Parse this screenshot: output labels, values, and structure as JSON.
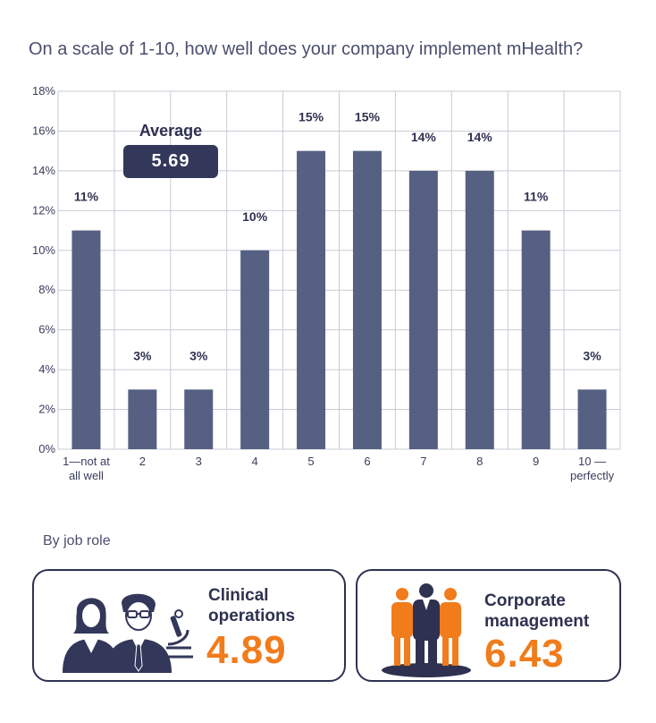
{
  "title": "On a scale of 1-10, how well does your company implement mHealth?",
  "average": {
    "label": "Average",
    "value": "5.69"
  },
  "by_role_label": "By job role",
  "roles": [
    {
      "line1": "Clinical",
      "line2": "operations",
      "value": "4.89"
    },
    {
      "line1": "Corporate",
      "line2": "management",
      "value": "6.43"
    }
  ],
  "colors": {
    "bar": "#566082",
    "accent": "#f07c1c",
    "dark": "#2e3150"
  },
  "chart_data": {
    "type": "bar",
    "title": "On a scale of 1-10, how well does your company implement mHealth?",
    "categories": [
      [
        "1—not at",
        "all well"
      ],
      [
        "2"
      ],
      [
        "3"
      ],
      [
        "4"
      ],
      [
        "5"
      ],
      [
        "6"
      ],
      [
        "7"
      ],
      [
        "8"
      ],
      [
        "9"
      ],
      [
        "10 —",
        "perfectly"
      ]
    ],
    "values": [
      11,
      3,
      3,
      10,
      15,
      15,
      14,
      14,
      11,
      3
    ],
    "data_labels": [
      "11%",
      "3%",
      "3%",
      "10%",
      "15%",
      "15%",
      "14%",
      "14%",
      "11%",
      "3%"
    ],
    "yticks": [
      "0%",
      "2%",
      "4%",
      "6%",
      "8%",
      "10%",
      "12%",
      "14%",
      "16%",
      "18%"
    ],
    "ylim": [
      0,
      18
    ],
    "xlabel": "",
    "ylabel": "",
    "grid": true
  }
}
